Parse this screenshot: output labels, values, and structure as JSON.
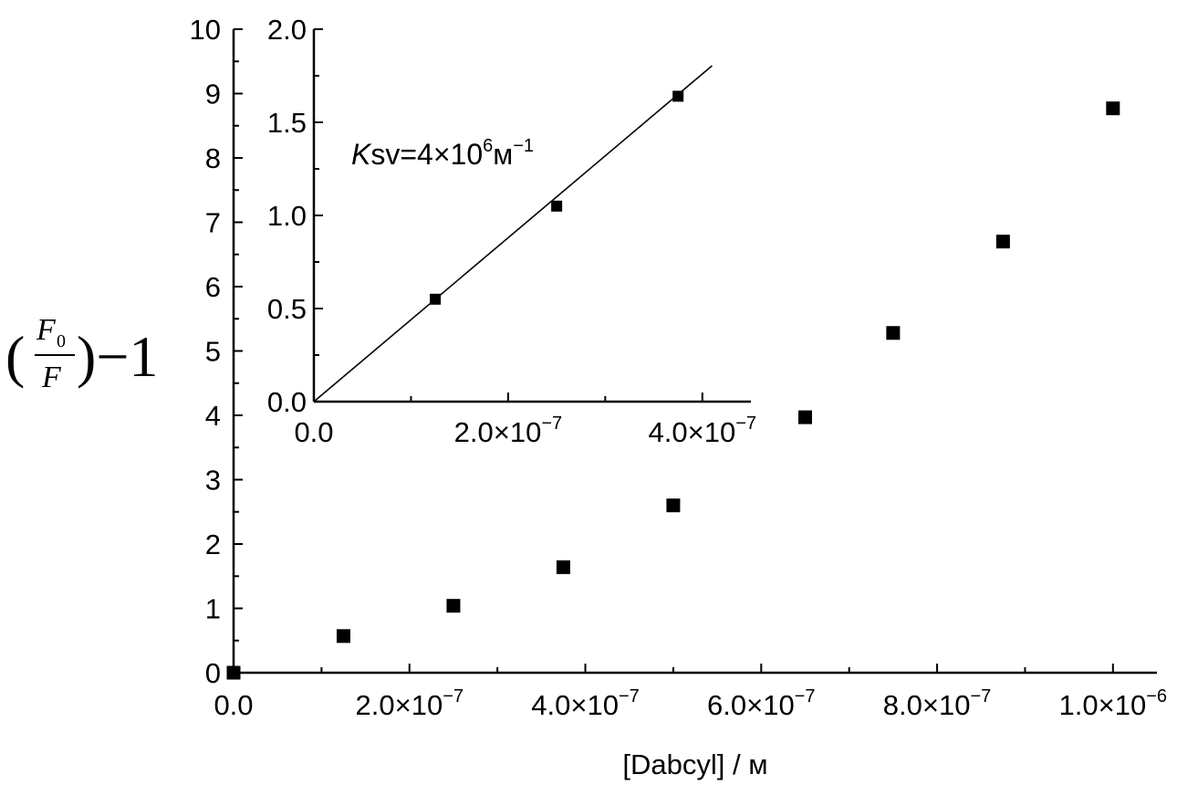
{
  "chart_data": [
    {
      "type": "scatter",
      "role": "main",
      "xlabel": "[Dabcyl] / м",
      "ylabel": {
        "prefix": "(",
        "numerator": "F",
        "numerator_sub": "0",
        "denominator": "F",
        "suffix": ")−1"
      },
      "xlim": [
        0,
        1.05e-06
      ],
      "ylim": [
        0,
        10
      ],
      "x_ticks": [
        0,
        2e-07,
        4e-07,
        6e-07,
        8e-07,
        1e-06
      ],
      "x_tick_labels": [
        {
          "base": "0.0",
          "exp": ""
        },
        {
          "base": "2.0×10",
          "exp": "−7"
        },
        {
          "base": "4.0×10",
          "exp": "−7"
        },
        {
          "base": "6.0×10",
          "exp": "−7"
        },
        {
          "base": "8.0×10",
          "exp": "−7"
        },
        {
          "base": "1.0×10",
          "exp": "−6"
        }
      ],
      "y_ticks": [
        0,
        1,
        2,
        3,
        4,
        5,
        6,
        7,
        8,
        9,
        10
      ],
      "y_tick_labels": [
        "0",
        "1",
        "2",
        "3",
        "4",
        "5",
        "6",
        "7",
        "8",
        "9",
        "10"
      ],
      "series": [
        {
          "x": [
            0,
            1.25e-07,
            2.5e-07,
            3.75e-07,
            5e-07,
            6.5e-07,
            7.5e-07,
            8.75e-07,
            1e-06
          ],
          "y": [
            0,
            0.57,
            1.04,
            1.64,
            2.6,
            3.97,
            5.28,
            6.7,
            8.77
          ]
        }
      ],
      "grid": false
    },
    {
      "type": "scatter",
      "role": "inset",
      "xlim": [
        0,
        4.5e-07
      ],
      "ylim": [
        0,
        2.0
      ],
      "x_ticks": [
        0,
        2e-07,
        4e-07
      ],
      "x_tick_labels": [
        {
          "base": "0.0",
          "exp": ""
        },
        {
          "base": "2.0×10",
          "exp": "−7"
        },
        {
          "base": "4.0×10",
          "exp": "−7"
        }
      ],
      "y_ticks": [
        0,
        0.5,
        1.0,
        1.5,
        2.0
      ],
      "y_tick_labels": [
        "0.0",
        "0.5",
        "1.0",
        "1.5",
        "2.0"
      ],
      "series": [
        {
          "x": [
            1.25e-07,
            2.5e-07,
            3.75e-07
          ],
          "y": [
            0.55,
            1.05,
            1.64
          ]
        }
      ],
      "fit_line": {
        "slope": 4400000.0,
        "intercept": 0,
        "x_range": [
          0,
          4.1e-07
        ]
      },
      "annotation": {
        "italic": "K",
        "text": "sv=4×10",
        "exp1": "6",
        "unit": "м",
        "exp2": "−1"
      },
      "grid": false
    }
  ]
}
